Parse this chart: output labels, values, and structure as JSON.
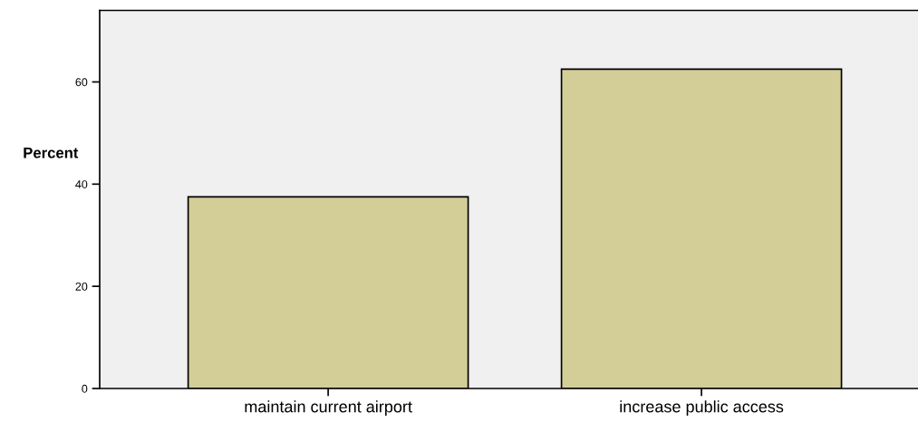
{
  "chart_data": {
    "type": "bar",
    "ylabel": "Percent",
    "categories": [
      "maintain current airport",
      "increase public access"
    ],
    "values": [
      37.5,
      62.5
    ],
    "color": "#d3ce98",
    "ylim": [
      0,
      74
    ],
    "yticks": [
      0,
      20,
      40,
      60
    ],
    "grid": false,
    "legend": false
  }
}
